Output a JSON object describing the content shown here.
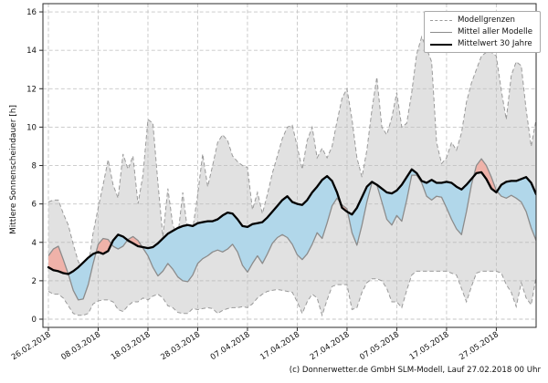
{
  "page": {
    "footer": "(c) Donnerwetter.de GmbH SLM-Modell, Lauf 27.02.2018 00 Uhr"
  },
  "legend": {
    "items": [
      {
        "label": "Modellgrenzen",
        "style": "dashed-gray"
      },
      {
        "label": "Mittel aller Modelle",
        "style": "solid-gray"
      },
      {
        "label": "Mittelwert 30 Jahre",
        "style": "solid-black-thick"
      }
    ]
  },
  "chart_data": {
    "type": "line",
    "title": "",
    "xlabel": "",
    "ylabel": "Mittlere Sonnenscheindauer [h]",
    "x_unit": "days since 26.02.2018 (daily values)",
    "x_tick_labels": [
      "26.02.2018",
      "08.03.2018",
      "18.03.2018",
      "28.03.2018",
      "07.04.2018",
      "17.04.2018",
      "27.04.2018",
      "07.05.2018",
      "17.05.2018",
      "27.05.2018"
    ],
    "x_tick_days": [
      0,
      10,
      20,
      30,
      40,
      50,
      60,
      70,
      80,
      90
    ],
    "y_ticks": [
      0,
      2,
      4,
      6,
      8,
      10,
      12,
      14,
      16
    ],
    "ylim": [
      -0.45,
      16.4
    ],
    "xlim_days": [
      -1.1,
      98
    ],
    "grid": true,
    "legend_position": "top-right",
    "colors": {
      "model_range_fill": "#bdbdbd",
      "band_model_below_mean": "#b1d7ea",
      "band_model_above_mean": "#efb2a9",
      "model_bound_line": "#9a9a9a",
      "model_mean_line": "#8c8c8c",
      "mean30_line": "#000000",
      "grid_line": "#c6c6c6"
    },
    "series": [
      {
        "name": "Modellgrenzen (obere Grenze)",
        "style": "dashed-gray",
        "values": [
          6.1,
          6.2,
          6.2,
          5.5,
          4.9,
          3.9,
          3.0,
          2.6,
          2.8,
          4.5,
          5.8,
          7.0,
          8.3,
          7.0,
          6.3,
          8.6,
          7.8,
          8.5,
          6.0,
          7.5,
          10.4,
          10.2,
          7.1,
          4.3,
          6.8,
          4.9,
          4.3,
          6.6,
          4.5,
          4.7,
          6.5,
          8.6,
          6.9,
          8.0,
          9.2,
          9.6,
          9.3,
          8.5,
          8.2,
          8.0,
          7.9,
          5.7,
          6.6,
          5.5,
          6.5,
          7.6,
          8.5,
          9.4,
          10.0,
          10.1,
          9.0,
          7.8,
          9.3,
          10.0,
          8.4,
          8.9,
          8.4,
          9.0,
          10.3,
          11.5,
          12.0,
          10.4,
          8.4,
          7.4,
          8.8,
          10.9,
          12.6,
          10.0,
          9.6,
          10.5,
          11.8,
          10.0,
          10.2,
          11.8,
          13.8,
          14.7,
          14.1,
          13.4,
          9.2,
          8.1,
          8.4,
          9.2,
          8.8,
          9.7,
          11.3,
          12.3,
          13.0,
          13.7,
          13.9,
          13.9,
          13.7,
          11.9,
          10.4,
          12.7,
          13.4,
          13.2,
          10.9,
          9.0,
          10.4
        ]
      },
      {
        "name": "Modellgrenzen (untere Grenze)",
        "style": "dashed-gray",
        "values": [
          1.45,
          1.3,
          1.3,
          1.1,
          0.7,
          0.3,
          0.2,
          0.2,
          0.3,
          0.8,
          0.95,
          1.0,
          1.0,
          0.9,
          0.5,
          0.4,
          0.7,
          0.9,
          0.9,
          1.1,
          1.0,
          1.2,
          1.3,
          1.1,
          0.7,
          0.6,
          0.35,
          0.3,
          0.3,
          0.55,
          0.5,
          0.55,
          0.6,
          0.55,
          0.3,
          0.45,
          0.55,
          0.6,
          0.6,
          0.65,
          0.6,
          0.8,
          1.1,
          1.3,
          1.45,
          1.5,
          1.55,
          1.5,
          1.45,
          1.4,
          0.9,
          0.3,
          0.9,
          1.3,
          1.1,
          0.2,
          1.0,
          1.7,
          1.8,
          1.8,
          1.8,
          0.5,
          0.6,
          1.4,
          1.9,
          2.1,
          2.1,
          2.0,
          1.6,
          0.9,
          0.9,
          0.6,
          1.5,
          2.3,
          2.5,
          2.5,
          2.5,
          2.5,
          2.5,
          2.5,
          2.5,
          2.4,
          2.3,
          1.6,
          0.9,
          1.7,
          2.4,
          2.5,
          2.5,
          2.5,
          2.5,
          2.4,
          1.8,
          1.4,
          0.65,
          1.9,
          1.1,
          0.75,
          2.2
        ]
      },
      {
        "name": "Mittel aller Modelle",
        "style": "solid-gray",
        "values": [
          3.3,
          3.65,
          3.8,
          3.1,
          2.35,
          1.5,
          1.0,
          1.05,
          1.8,
          2.9,
          3.9,
          4.2,
          4.15,
          3.8,
          3.65,
          3.8,
          4.15,
          4.3,
          4.1,
          3.7,
          3.3,
          2.7,
          2.25,
          2.5,
          2.9,
          2.6,
          2.2,
          2.0,
          1.95,
          2.3,
          2.9,
          3.15,
          3.3,
          3.5,
          3.6,
          3.5,
          3.65,
          3.9,
          3.5,
          2.8,
          2.45,
          2.9,
          3.3,
          2.9,
          3.4,
          3.95,
          4.25,
          4.4,
          4.25,
          3.9,
          3.35,
          3.1,
          3.4,
          3.9,
          4.5,
          4.2,
          5.0,
          5.9,
          6.3,
          5.95,
          5.75,
          4.5,
          3.85,
          4.9,
          6.1,
          7.1,
          7.0,
          6.1,
          5.2,
          4.9,
          5.4,
          5.1,
          6.2,
          7.5,
          7.5,
          7.1,
          6.4,
          6.2,
          6.4,
          6.35,
          5.8,
          5.2,
          4.7,
          4.4,
          5.6,
          7.0,
          8.0,
          8.35,
          8.0,
          7.4,
          6.7,
          6.4,
          6.3,
          6.45,
          6.3,
          6.1,
          5.6,
          4.75,
          4.1
        ]
      },
      {
        "name": "Mittelwert 30 Jahre",
        "style": "solid-black-thick",
        "values": [
          2.7,
          2.55,
          2.5,
          2.4,
          2.35,
          2.5,
          2.7,
          2.95,
          3.2,
          3.4,
          3.5,
          3.4,
          3.55,
          4.1,
          4.4,
          4.3,
          4.1,
          3.95,
          3.8,
          3.75,
          3.7,
          3.75,
          3.95,
          4.2,
          4.45,
          4.6,
          4.75,
          4.85,
          4.9,
          4.85,
          5.0,
          5.05,
          5.1,
          5.1,
          5.2,
          5.4,
          5.55,
          5.5,
          5.2,
          4.85,
          4.8,
          4.95,
          5.0,
          5.05,
          5.3,
          5.6,
          5.9,
          6.2,
          6.4,
          6.1,
          6.0,
          5.95,
          6.2,
          6.6,
          6.9,
          7.25,
          7.45,
          7.2,
          6.6,
          5.8,
          5.6,
          5.45,
          5.8,
          6.35,
          6.9,
          7.15,
          7.0,
          6.8,
          6.6,
          6.55,
          6.7,
          7.0,
          7.4,
          7.8,
          7.6,
          7.2,
          7.1,
          7.25,
          7.1,
          7.1,
          7.15,
          7.1,
          6.9,
          6.75,
          7.0,
          7.3,
          7.6,
          7.65,
          7.3,
          6.8,
          6.6,
          7.0,
          7.15,
          7.2,
          7.2,
          7.3,
          7.4,
          7.1,
          6.5
        ]
      }
    ]
  }
}
